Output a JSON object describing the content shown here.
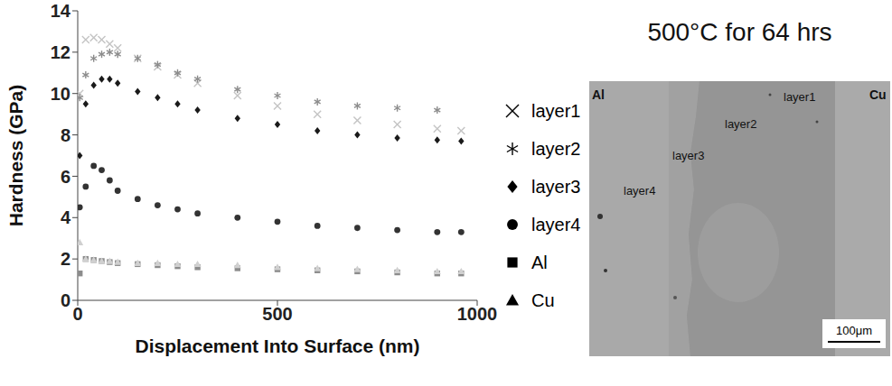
{
  "chart_data": {
    "type": "scatter",
    "x_label": "Displacement Into Surface (nm)",
    "y_label": "Hardness (GPa)",
    "x": [
      5,
      20,
      40,
      60,
      80,
      100,
      150,
      200,
      250,
      300,
      400,
      500,
      600,
      700,
      800,
      900,
      960
    ],
    "series": [
      {
        "name": "layer1",
        "color": "#c4c4c4",
        "marker": "x",
        "values": [
          10.0,
          12.6,
          12.7,
          12.6,
          12.4,
          12.2,
          11.7,
          11.3,
          10.9,
          10.5,
          9.9,
          9.4,
          9.0,
          8.7,
          8.5,
          8.3,
          8.2
        ]
      },
      {
        "name": "layer2",
        "color": "#8c8c8c",
        "marker": "asterisk",
        "values": [
          9.8,
          10.9,
          11.7,
          11.9,
          12.0,
          11.9,
          11.7,
          11.4,
          11.0,
          10.7,
          10.2,
          9.9,
          9.6,
          9.4,
          9.3,
          9.2,
          null
        ]
      },
      {
        "name": "layer3",
        "color": "#1a1a1a",
        "marker": "diamond",
        "values": [
          7.0,
          9.5,
          10.4,
          10.7,
          10.7,
          10.5,
          10.1,
          9.8,
          9.5,
          9.2,
          8.8,
          8.5,
          8.2,
          8.0,
          7.85,
          7.75,
          7.7
        ]
      },
      {
        "name": "layer4",
        "color": "#333333",
        "marker": "circle",
        "values": [
          4.5,
          5.5,
          6.5,
          6.3,
          5.8,
          5.3,
          4.9,
          4.6,
          4.4,
          4.2,
          4.0,
          3.8,
          3.6,
          3.5,
          3.4,
          3.3,
          3.3
        ]
      },
      {
        "name": "Al",
        "color": "#8c8c8c",
        "marker": "square",
        "values": [
          1.3,
          2.0,
          1.95,
          1.9,
          1.85,
          1.8,
          1.75,
          1.7,
          1.65,
          1.6,
          1.55,
          1.5,
          1.45,
          1.4,
          1.35,
          1.3,
          1.3
        ]
      },
      {
        "name": "Cu",
        "color": "#d0d0d0",
        "marker": "triangle",
        "values": [
          2.8,
          2.0,
          1.95,
          1.9,
          1.9,
          1.85,
          1.8,
          1.8,
          1.75,
          1.75,
          1.7,
          1.6,
          1.55,
          1.5,
          1.45,
          1.4,
          1.4
        ]
      }
    ],
    "xlim": [
      0,
      1000
    ],
    "xticks": [
      0,
      500,
      1000
    ],
    "ylim": [
      0,
      14
    ],
    "yticks": [
      0,
      2,
      4,
      6,
      8,
      10,
      12,
      14
    ],
    "grid": false,
    "legend": "right"
  },
  "image": {
    "title": "500°C for 64 hrs",
    "labels": [
      "Al",
      "Cu",
      "layer1",
      "layer2",
      "layer3",
      "layer4"
    ],
    "scale_bar": "100μm"
  }
}
